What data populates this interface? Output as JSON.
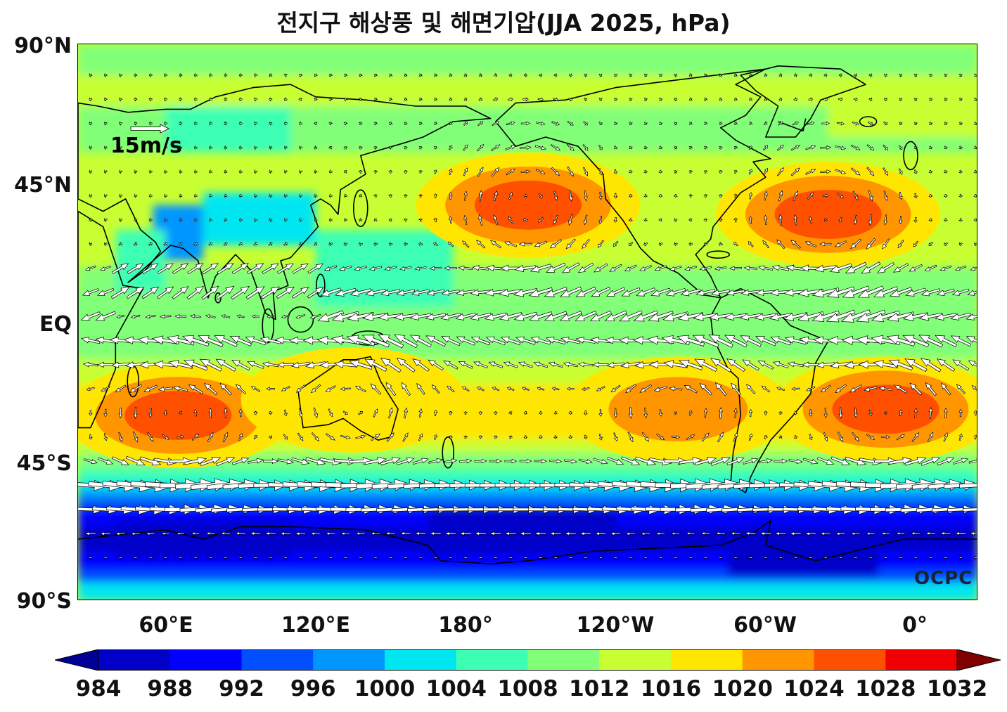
{
  "title": "전지구 해상풍 및 해면기압(JJA 2025, hPa)",
  "credit": "OCPC",
  "reference_vector": {
    "label": "15m/s",
    "speed": 15
  },
  "axes": {
    "lat_labels": [
      "90°N",
      "45°N",
      "EQ",
      "45°S",
      "90°S"
    ],
    "lat_values": [
      90,
      45,
      0,
      -45,
      -90
    ],
    "lon_labels": [
      "60°E",
      "120°E",
      "180°",
      "120°W",
      "60°W",
      "0°"
    ],
    "lon_values": [
      60,
      120,
      180,
      240,
      300,
      360
    ],
    "lon_range": [
      25,
      385
    ],
    "lat_range": [
      -90,
      90
    ]
  },
  "colorbar": {
    "labels": [
      "984",
      "988",
      "992",
      "996",
      "1000",
      "1004",
      "1008",
      "1012",
      "1016",
      "1020",
      "1024",
      "1028",
      "1032"
    ],
    "levels": [
      984,
      988,
      992,
      996,
      1000,
      1004,
      1008,
      1012,
      1016,
      1020,
      1024,
      1028,
      1032
    ],
    "colors": [
      "#000096",
      "#0000c8",
      "#0000ff",
      "#0050ff",
      "#0096ff",
      "#00e6f0",
      "#3cffb4",
      "#82ff78",
      "#c8ff32",
      "#ffe600",
      "#ff9600",
      "#ff5000",
      "#f00000",
      "#960000"
    ],
    "under_color": "#000096",
    "over_color": "#800000",
    "unit": "hPa"
  },
  "chart_data": {
    "type": "heatmap",
    "title": "전지구 해상풍 및 해면기압(JJA 2025, hPa)",
    "variable": "sea level pressure (hPa) with surface wind vectors",
    "pressure_centers": [
      {
        "lon": 205,
        "lat": 38,
        "value": 1026
      },
      {
        "lon": 325,
        "lat": 35,
        "value": 1025
      },
      {
        "lon": 65,
        "lat": -30,
        "value": 1027
      },
      {
        "lon": 265,
        "lat": -28,
        "value": 1022
      },
      {
        "lon": 348,
        "lat": -28,
        "value": 1025
      },
      {
        "lon": 135,
        "lat": -25,
        "value": 1019
      },
      {
        "lon": 60,
        "lat": 30,
        "value": 998
      },
      {
        "lon": 85,
        "lat": 35,
        "value": 1000
      },
      {
        "lon": 180,
        "lat": -72,
        "value": 984
      },
      {
        "lon": 300,
        "lat": -75,
        "value": 984
      },
      {
        "lon": 60,
        "lat": -70,
        "value": 986
      },
      {
        "lon": 60,
        "lat": 65,
        "value": 1006
      },
      {
        "lon": 340,
        "lat": 70,
        "value": 1015
      }
    ],
    "wind_regimes": [
      {
        "region": "Southern Ocean westerlies",
        "lat_band": [
          -60,
          -40
        ],
        "direction": "eastward",
        "speed": 12
      },
      {
        "region": "Indian monsoon southwesterlies",
        "lat_band": [
          0,
          20
        ],
        "direction": "northeastward",
        "speed": 13
      },
      {
        "region": "Trade winds",
        "lat_band": [
          -20,
          15
        ],
        "direction": "westward",
        "speed": 7
      },
      {
        "region": "North Pacific anticyclone",
        "lat_band": [
          25,
          50
        ],
        "direction": "clockwise",
        "speed": 6
      },
      {
        "region": "North Atlantic anticyclone",
        "lat_band": [
          25,
          50
        ],
        "direction": "clockwise",
        "speed": 6
      }
    ]
  }
}
